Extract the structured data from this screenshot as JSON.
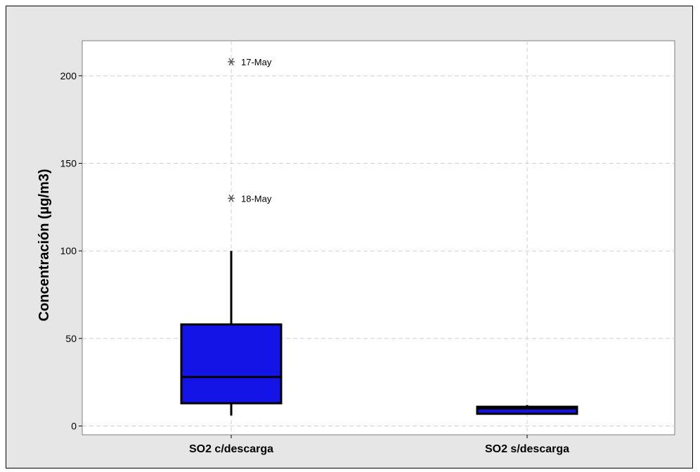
{
  "chart_data": {
    "type": "box",
    "title": "",
    "xlabel": "",
    "ylabel": "Concentración (µg/m3)",
    "ylim": [
      -5,
      220
    ],
    "yticks": [
      0,
      50,
      100,
      150,
      200
    ],
    "grid": true,
    "categories": [
      "SO2 c/descarga",
      "SO2 s/descarga"
    ],
    "boxes": [
      {
        "category": "SO2 c/descarga",
        "whisker_low": 6,
        "q1": 13,
        "median": 28,
        "q3": 58,
        "whisker_high": 100,
        "outliers": [
          {
            "value": 208,
            "label": "17-May"
          },
          {
            "value": 130,
            "label": "18-May"
          }
        ]
      },
      {
        "category": "SO2 s/descarga",
        "whisker_low": 7,
        "q1": 7,
        "median": 10,
        "q3": 11,
        "whisker_high": 12,
        "outliers": []
      }
    ],
    "colors": {
      "box_fill": "#1414e6",
      "box_stroke": "#000000",
      "plot_background": "#ffffff",
      "outer_background": "#e6e6e6",
      "grid": "#d0d0d0",
      "outlier_marker": "#555555"
    }
  }
}
